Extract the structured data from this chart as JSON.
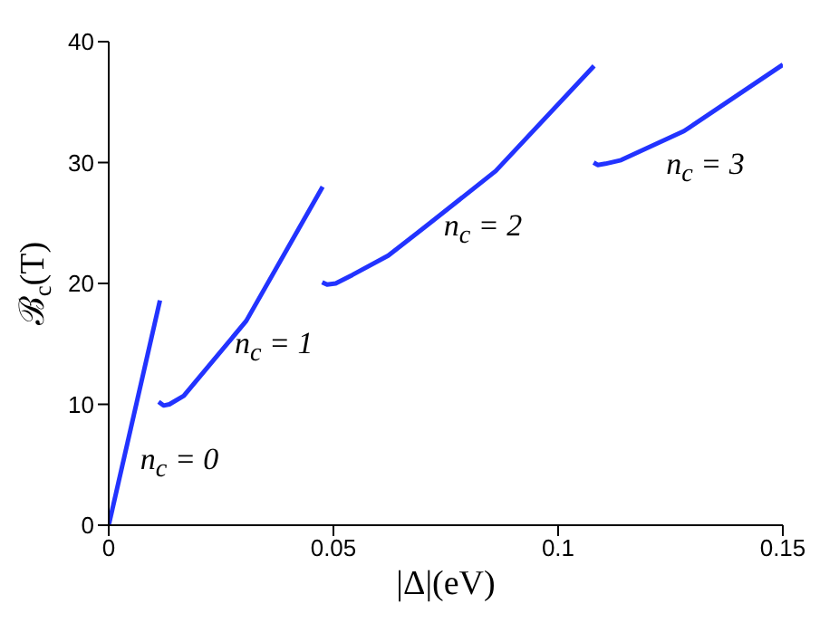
{
  "chart_data": {
    "type": "line",
    "xlabel": "|Δ|(eV)",
    "ylabel": "ℬ$_{c}$(T)",
    "series": [
      {
        "color": "#2233ff",
        "x": [
          0,
          0.0114
        ],
        "values": [
          0,
          18.6
        ]
      },
      {
        "color": "#2233ff",
        "x": [
          0.0111,
          0.0122,
          0.0135,
          0.0167,
          0.0306,
          0.0476
        ],
        "values": [
          10.2,
          9.9,
          10,
          10.7,
          16.9,
          28
        ]
      },
      {
        "color": "#2233ff",
        "x": [
          0.0475,
          0.0486,
          0.0505,
          0.0542,
          0.0622,
          0.0722,
          0.0861,
          0.108
        ],
        "values": [
          20.1,
          19.9,
          20,
          20.7,
          22.3,
          25.2,
          29.3,
          38
        ]
      },
      {
        "color": "#2233ff",
        "x": [
          0.1079,
          0.1088,
          0.1105,
          0.114,
          0.128,
          0.15
        ],
        "values": [
          30,
          29.8,
          29.9,
          30.2,
          32.6,
          38.1
        ]
      }
    ],
    "annotations": [
      "n$_{c}$ = 0",
      "n$_{c}$ = 1",
      "n$_{c}$ = 2",
      "n$_{c}$ = 3"
    ],
    "xlim": [
      0,
      0.15
    ],
    "xticks": [
      0,
      0.05,
      0.1,
      0.15
    ],
    "ylim": [
      0,
      40
    ],
    "yticks": [
      0,
      10,
      20,
      30,
      40
    ],
    "grid": false,
    "legend": false,
    "marker": "none",
    "line_style": "solid"
  }
}
